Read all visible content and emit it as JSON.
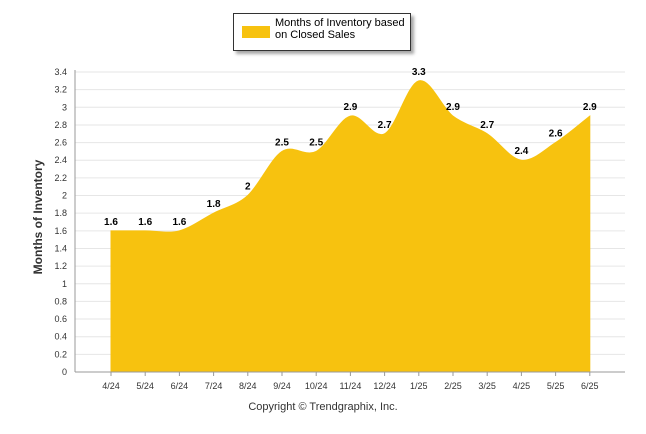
{
  "legend": {
    "label": "Months of Inventory based on Closed Sales"
  },
  "copyright": "Copyright © Trendgraphix, Inc.",
  "colors": {
    "area": "#f7c20f",
    "grid": "#e6e6e6",
    "axis": "#999999"
  },
  "chart_data": {
    "type": "area",
    "title": "",
    "xlabel": "",
    "ylabel": "Months of Inventory",
    "categories": [
      "4/24",
      "5/24",
      "6/24",
      "7/24",
      "8/24",
      "9/24",
      "10/24",
      "11/24",
      "12/24",
      "1/25",
      "2/25",
      "3/25",
      "4/25",
      "5/25",
      "6/25"
    ],
    "series": [
      {
        "name": "Months of Inventory based on Closed Sales",
        "values": [
          1.6,
          1.6,
          1.6,
          1.8,
          2,
          2.5,
          2.5,
          2.9,
          2.7,
          3.3,
          2.9,
          2.7,
          2.4,
          2.6,
          2.9
        ],
        "labels": [
          "1.6",
          "1.6",
          "1.6",
          "1.8",
          "2",
          "2.5",
          "2.5",
          "2.9",
          "2.7",
          "3.3",
          "2.9",
          "2.7",
          "2.4",
          "2.6",
          "2.9"
        ]
      }
    ],
    "ylim": [
      0,
      3.4
    ],
    "yticks": [
      "0",
      "0.2",
      "0.4",
      "0.6",
      "0.8",
      "1",
      "1.2",
      "1.4",
      "1.6",
      "1.8",
      "2",
      "2.2",
      "2.4",
      "2.6",
      "2.8",
      "3",
      "3.2",
      "3.4"
    ],
    "grid": true,
    "legend_position": "top-center"
  }
}
